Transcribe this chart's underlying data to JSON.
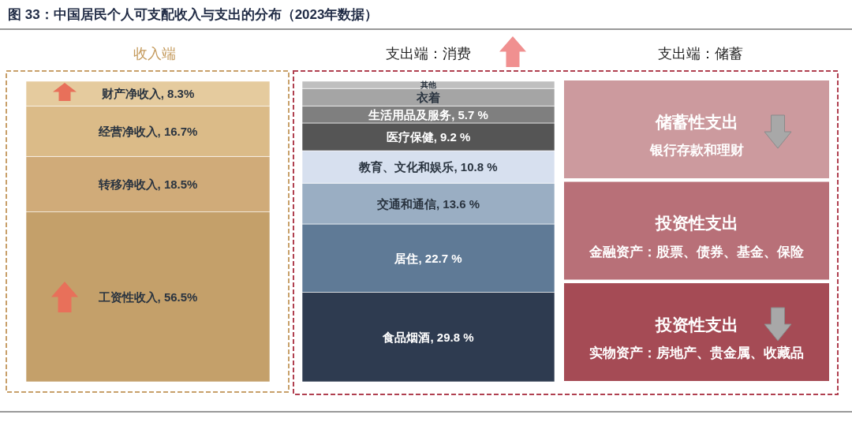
{
  "chart_data": [
    {
      "type": "bar",
      "title": "图 33：中国居民个人可支配收入与支出的分布（2023年数据）",
      "subtitle": "收入端",
      "categories": [
        null
      ],
      "stacked": true,
      "series": [
        {
          "color": "#c4a06a",
          "values": [
            56.5
          ],
          "value_labels": [
            "工资性收入, 56.5%"
          ]
        },
        {
          "color": "#d0ab79",
          "values": [
            18.5
          ],
          "value_labels": [
            "转移净收入, 18.5%"
          ]
        },
        {
          "color": "#dbbb88",
          "values": [
            16.7
          ],
          "value_labels": [
            "经营净收入, 16.7%"
          ]
        },
        {
          "color": "#e5cb9e",
          "values": [
            8.3
          ],
          "value_labels": [
            "财产净收入, 8.3%"
          ]
        }
      ]
    },
    {
      "type": "bar",
      "subtitle": "支出端：消费",
      "categories": [
        null
      ],
      "stacked": true,
      "series": [
        {
          "color": "#2e3b50",
          "values": [
            29.8
          ],
          "value_labels": [
            "食品烟酒, 29.8 %"
          ]
        },
        {
          "color": "#5f7a96",
          "values": [
            22.7
          ],
          "value_labels": [
            "居住, 22.7 %"
          ]
        },
        {
          "color": "#9aaec3",
          "values": [
            13.6
          ],
          "value_labels": [
            "交通和通信, 13.6 %"
          ]
        },
        {
          "color": "#d7e0ef",
          "values": [
            10.8
          ],
          "value_labels": [
            "教育、文化和娱乐, 10.8 %"
          ]
        },
        {
          "color": "#555555",
          "values": [
            9.2
          ],
          "value_labels": [
            "医疗保健, 9.2 %"
          ]
        },
        {
          "color": "#7f7f7f",
          "values": [
            5.7
          ],
          "value_labels": [
            "生活用品及服务, 5.7 %"
          ]
        },
        {
          "name": "衣着",
          "color": "#a5a5a5",
          "values": [
            5.8
          ],
          "value_labels": [
            null
          ]
        },
        {
          "name": "其他",
          "color": "#bfbfbf",
          "values": [
            2.4
          ],
          "value_labels": [
            null
          ]
        }
      ]
    },
    {
      "type": "other",
      "subtitle": "支出端：储蓄",
      "annotations": [
        "储蓄性支出",
        "银行存款和理财",
        "投资性支出",
        "金融资产：股票、债券、基金、保险",
        "投资性支出",
        "实物资产：房地产、贵金属、收藏品"
      ]
    }
  ]
}
